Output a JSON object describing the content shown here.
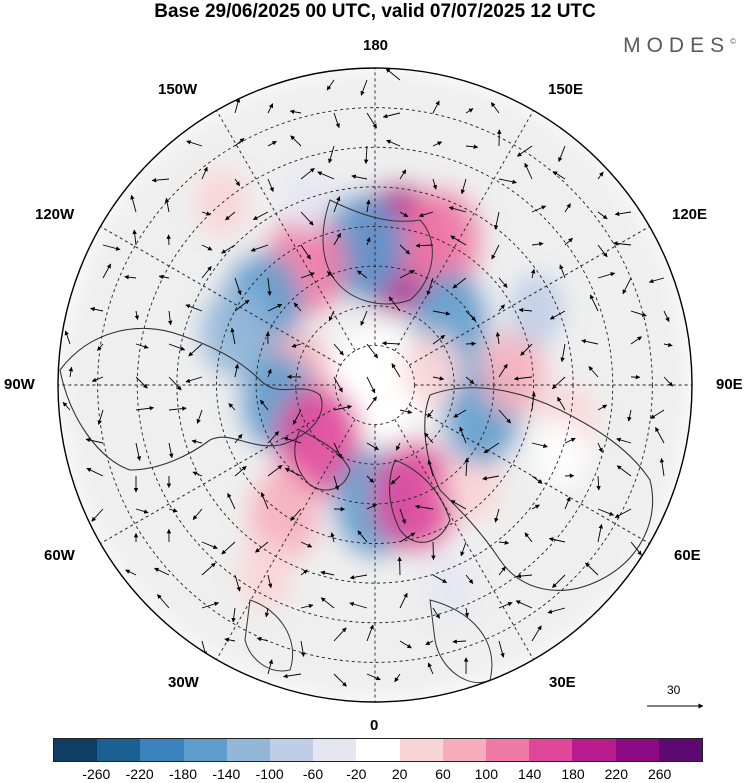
{
  "title": "Base 29/06/2025 00 UTC, valid 07/07/2025 12 UTC",
  "brand": "MODES",
  "brand_mark": "©",
  "longitude_labels": {
    "top": "180",
    "bottom": "0",
    "left": "90W",
    "right": "90E",
    "w150": "150W",
    "e150": "150E",
    "w120": "120W",
    "e120": "120E",
    "w60": "60W",
    "e60": "60E",
    "w30": "30W",
    "e30": "30E"
  },
  "vector_scale_label": "30",
  "colorbar": {
    "labels": [
      "-260",
      "-220",
      "-180",
      "-140",
      "-100",
      "-60",
      "-20",
      "20",
      "60",
      "100",
      "140",
      "180",
      "220",
      "260"
    ],
    "colors": [
      "#0f3d63",
      "#1b5f93",
      "#3a82bd",
      "#5e9dcc",
      "#93b7d9",
      "#bfcde6",
      "#e6e6f2",
      "#ffffff",
      "#f9d4d6",
      "#f6aebd",
      "#f07aa6",
      "#e0479b",
      "#b81b8c",
      "#8e0a84",
      "#5c0a72"
    ]
  },
  "anomaly_cells": [
    {
      "lon": 170,
      "lat": 55,
      "value": 230
    },
    {
      "lon": 155,
      "lat": 50,
      "value": 150
    },
    {
      "lon": -175,
      "lat": 55,
      "value": -160
    },
    {
      "lon": -150,
      "lat": 55,
      "value": 150
    },
    {
      "lon": -125,
      "lat": 55,
      "value": -150
    },
    {
      "lon": -110,
      "lat": 52,
      "value": -100
    },
    {
      "lon": -95,
      "lat": 70,
      "value": 110
    },
    {
      "lon": -80,
      "lat": 65,
      "value": -130
    },
    {
      "lon": -45,
      "lat": 70,
      "value": 170
    },
    {
      "lon": -35,
      "lat": 50,
      "value": 110
    },
    {
      "lon": 0,
      "lat": 60,
      "value": -160
    },
    {
      "lon": 20,
      "lat": 60,
      "value": 170
    },
    {
      "lon": 45,
      "lat": 55,
      "value": 60
    },
    {
      "lon": 75,
      "lat": 62,
      "value": -140
    },
    {
      "lon": 95,
      "lat": 55,
      "value": 90
    },
    {
      "lon": 115,
      "lat": 45,
      "value": -50
    },
    {
      "lon": 130,
      "lat": 65,
      "value": -130
    },
    {
      "lon": 80,
      "lat": 40,
      "value": 40
    },
    {
      "lon": 70,
      "lat": 40,
      "value": 30
    },
    {
      "lon": -140,
      "lat": 30,
      "value": 40
    },
    {
      "lon": -30,
      "lat": 35,
      "value": 50
    },
    {
      "lon": 20,
      "lat": 35,
      "value": -40
    },
    {
      "lon": 105,
      "lat": 75,
      "value": 60
    },
    {
      "lon": -160,
      "lat": 40,
      "value": -30
    }
  ]
}
